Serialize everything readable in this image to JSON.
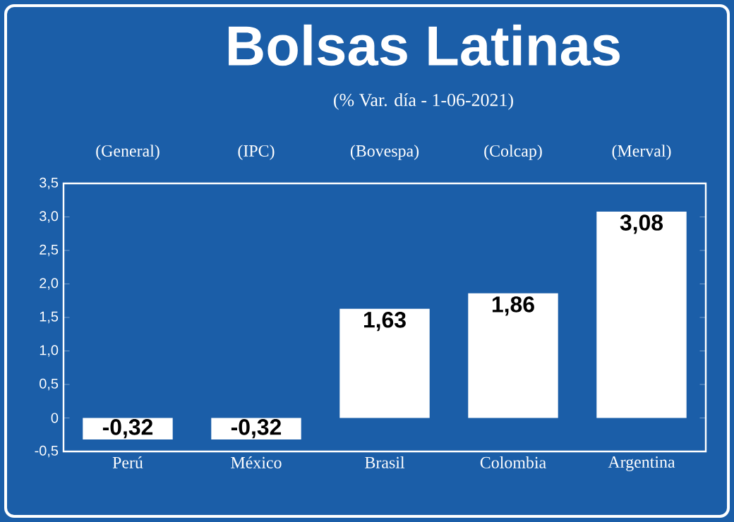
{
  "chart_data": {
    "type": "bar",
    "title": "Bolsas Latinas",
    "subtitle": "(% Var. día - 1-06-2021)",
    "annotations": [
      "(General)",
      "(IPC)",
      "(Bovespa)",
      "(Colcap)",
      "(Merval)"
    ],
    "categories": [
      "Perú",
      "México",
      "Brasil",
      "Colombia",
      "Argentina"
    ],
    "values": [
      -0.32,
      -0.32,
      1.63,
      1.86,
      3.08
    ],
    "value_labels": [
      "-0,32",
      "-0,32",
      "1,63",
      "1,86",
      "3,08"
    ],
    "color": "#ffffff",
    "ylim": [
      -0.5,
      3.5
    ],
    "yticks": [
      {
        "value": -0.5,
        "label": "-0,5"
      },
      0,
      {
        "value": 0.5,
        "label": "0,5"
      },
      {
        "value": 1,
        "label": "1,0"
      },
      {
        "value": 1.5,
        "label": "1,5"
      },
      {
        "value": 2,
        "label": "2,0"
      },
      {
        "value": 2.5,
        "label": "2,5"
      },
      {
        "value": 3,
        "label": "3,0"
      },
      {
        "value": 3.5,
        "label": "3,5"
      }
    ],
    "grid": false
  }
}
